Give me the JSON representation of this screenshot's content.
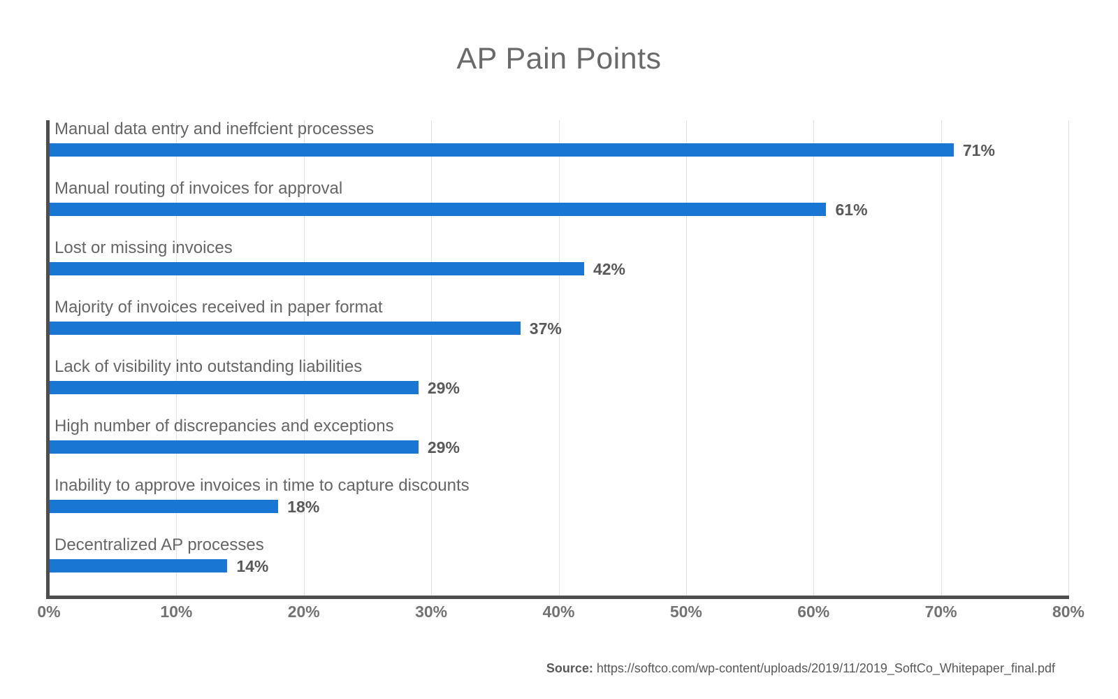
{
  "title": "AP Pain Points",
  "source": {
    "label": "Source:",
    "url": "https://softco.com/wp-content/uploads/2019/11/2019_SoftCo_Whitepaper_final.pdf"
  },
  "colors": {
    "bar": "#1976D2",
    "axis": "#4e4e4e",
    "grid": "#e3e3e3",
    "category_label": "#666666",
    "value_label": "#595959",
    "tick_label": "#737373",
    "title": "#6a6a6a",
    "background": "#ffffff"
  },
  "chart_data": {
    "type": "bar",
    "orientation": "horizontal",
    "title": "AP Pain Points",
    "categories": [
      "Manual data entry and ineffcient processes",
      "Manual routing of invoices for approval",
      "Lost or missing invoices",
      "Majority of invoices received in paper format",
      "Lack of visibility into outstanding liabilities",
      "High number of discrepancies and exceptions",
      "Inability to approve invoices in time to capture discounts",
      "Decentralized AP processes"
    ],
    "values": [
      71,
      61,
      42,
      37,
      29,
      29,
      18,
      14
    ],
    "value_labels": [
      "71%",
      "61%",
      "42%",
      "37%",
      "29%",
      "29%",
      "18%",
      "14%"
    ],
    "xlabel": "",
    "ylabel": "",
    "xlim": [
      0,
      80
    ],
    "x_tick_values": [
      0,
      10,
      20,
      30,
      40,
      50,
      60,
      70,
      80
    ],
    "x_ticks": [
      "0%",
      "10%",
      "20%",
      "30%",
      "40%",
      "50%",
      "60%",
      "70%",
      "80%"
    ],
    "grid": true,
    "legend": false
  }
}
